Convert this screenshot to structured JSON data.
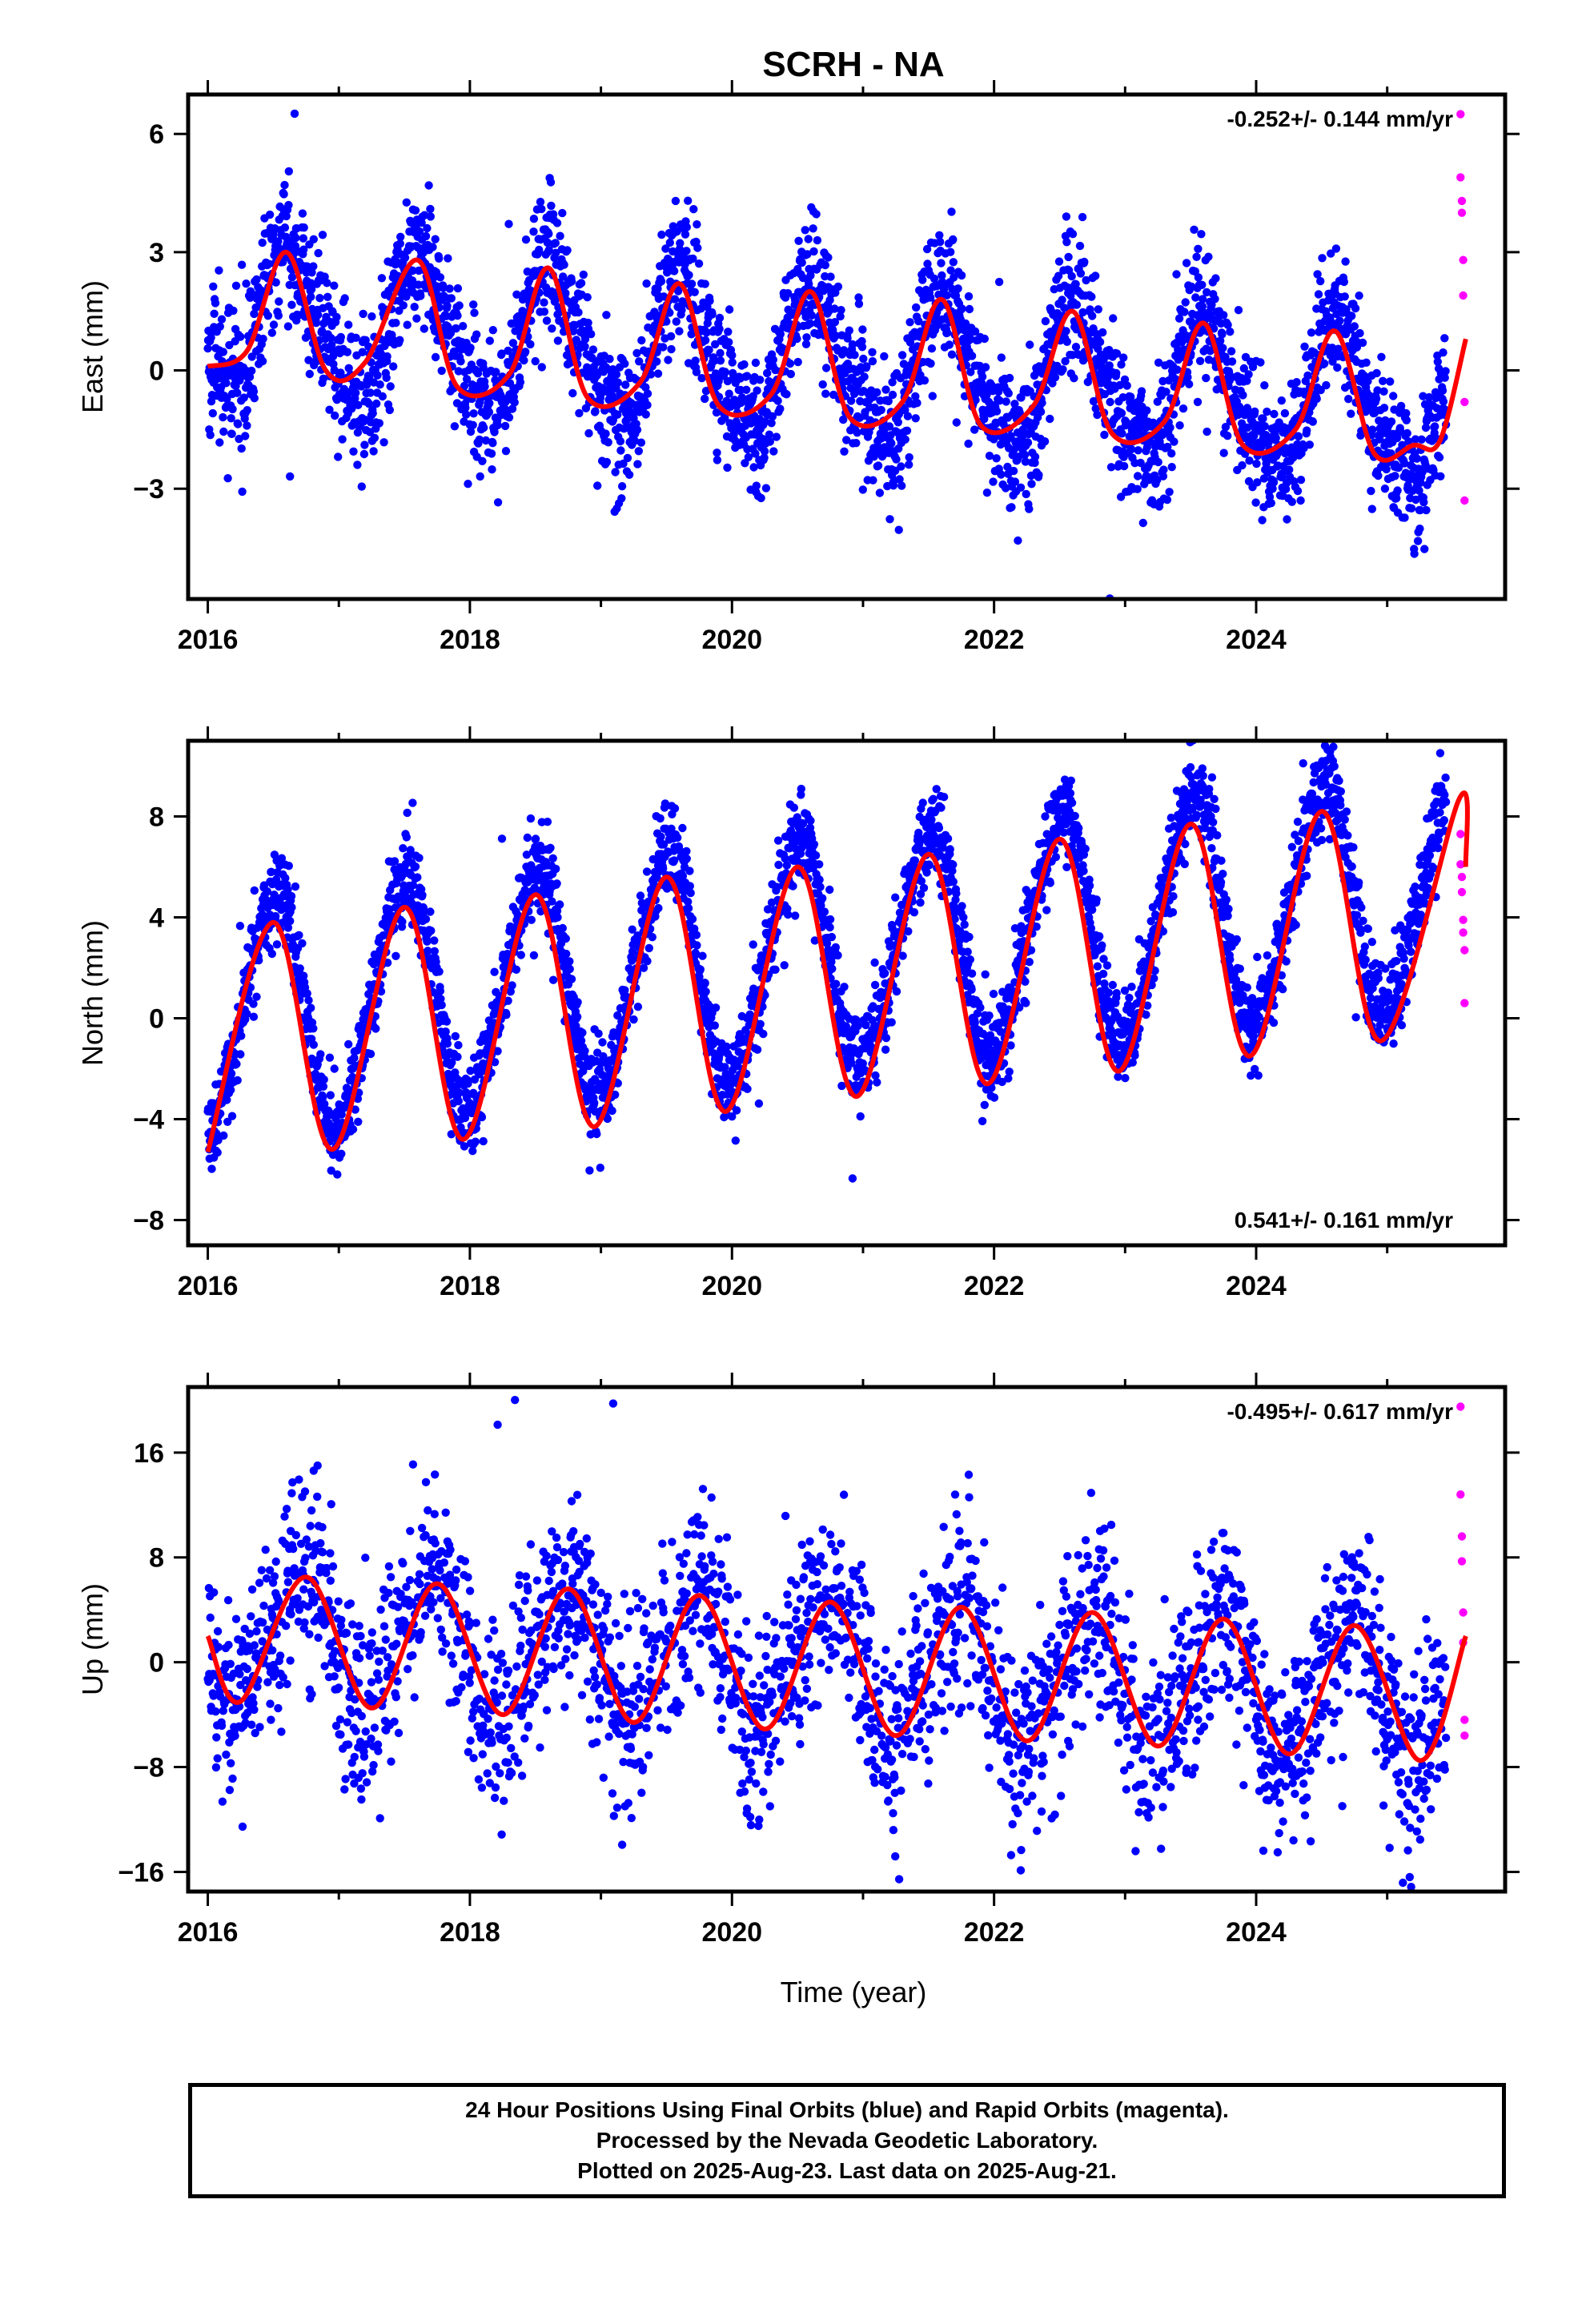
{
  "title": "SCRH - NA",
  "colors": {
    "final": "#0000ff",
    "rapid": "#ff00ff",
    "fit": "#ff0000",
    "axis": "#000000"
  },
  "x_axis": {
    "label": "Time (year)",
    "ticks": [
      2016,
      2018,
      2020,
      2022,
      2024
    ],
    "range": [
      2015.85,
      2025.9
    ]
  },
  "footer": {
    "line1": "24 Hour Positions Using Final Orbits (blue) and Rapid Orbits (magenta).",
    "line2": "Processed by the Nevada Geodetic Laboratory.",
    "line3": "Plotted on 2025-Aug-23. Last data on 2025-Aug-21."
  },
  "chart_data": [
    {
      "type": "scatter",
      "panel": "east",
      "ylabel": "East (mm)",
      "rate_text": "-0.252+/- 0.144 mm/yr",
      "rate_position": "top-right",
      "ylim": [
        -5.8,
        7.0
      ],
      "yticks": [
        -3,
        0,
        3,
        6
      ],
      "model": {
        "offset": 1.4,
        "trend": -0.252,
        "annual_amp": 1.8,
        "annual_peak": 0.62,
        "semi_amp": 0.35,
        "semi_peak": 0.05,
        "noise_sd": 0.85
      },
      "final_fit": [
        [
          2016.0,
          0.1
        ],
        [
          2016.3,
          0.5
        ],
        [
          2016.6,
          3.0
        ],
        [
          2016.9,
          0.0
        ],
        [
          2017.2,
          0.2
        ],
        [
          2017.6,
          2.8
        ],
        [
          2017.9,
          -0.4
        ],
        [
          2018.3,
          -0.1
        ],
        [
          2018.6,
          2.6
        ],
        [
          2018.9,
          -0.7
        ],
        [
          2019.3,
          -0.3
        ],
        [
          2019.6,
          2.2
        ],
        [
          2019.9,
          -0.9
        ],
        [
          2020.3,
          -0.6
        ],
        [
          2020.6,
          2.0
        ],
        [
          2020.9,
          -1.2
        ],
        [
          2021.3,
          -0.8
        ],
        [
          2021.6,
          1.8
        ],
        [
          2021.9,
          -1.4
        ],
        [
          2022.3,
          -0.9
        ],
        [
          2022.6,
          1.5
        ],
        [
          2022.9,
          -1.6
        ],
        [
          2023.3,
          -1.3
        ],
        [
          2023.6,
          1.2
        ],
        [
          2023.9,
          -1.9
        ],
        [
          2024.3,
          -1.5
        ],
        [
          2024.6,
          1.0
        ],
        [
          2024.9,
          -2.1
        ],
        [
          2025.2,
          -1.9
        ],
        [
          2025.4,
          -1.8
        ],
        [
          2025.6,
          0.8
        ]
      ],
      "rapid_points": [
        [
          2025.56,
          6.5
        ],
        [
          2025.56,
          4.9
        ],
        [
          2025.57,
          4.3
        ],
        [
          2025.57,
          4.0
        ],
        [
          2025.58,
          2.8
        ],
        [
          2025.58,
          1.9
        ],
        [
          2025.59,
          -0.8
        ],
        [
          2025.59,
          -3.3
        ]
      ]
    },
    {
      "type": "scatter",
      "panel": "north",
      "ylabel": "North (mm)",
      "rate_text": "0.541+/- 0.161 mm/yr",
      "rate_position": "bottom-right",
      "ylim": [
        -9.0,
        11.0
      ],
      "yticks": [
        -8,
        -4,
        0,
        4,
        8
      ],
      "model": {
        "offset": -0.1,
        "trend": 0.541,
        "annual_amp": 4.6,
        "annual_peak": 0.5,
        "semi_amp": 0.4,
        "semi_peak": 0.1,
        "noise_sd": 0.9
      },
      "final_fit": [
        [
          2016.0,
          -5.3
        ],
        [
          2016.5,
          3.8
        ],
        [
          2016.95,
          -5.2
        ],
        [
          2017.5,
          4.4
        ],
        [
          2017.95,
          -4.8
        ],
        [
          2018.5,
          4.9
        ],
        [
          2018.95,
          -4.3
        ],
        [
          2019.5,
          5.6
        ],
        [
          2019.95,
          -3.7
        ],
        [
          2020.5,
          6.0
        ],
        [
          2020.95,
          -3.1
        ],
        [
          2021.5,
          6.5
        ],
        [
          2021.95,
          -2.6
        ],
        [
          2022.5,
          7.1
        ],
        [
          2022.95,
          -2.1
        ],
        [
          2023.5,
          7.7
        ],
        [
          2023.95,
          -1.5
        ],
        [
          2024.5,
          8.2
        ],
        [
          2024.95,
          -0.9
        ],
        [
          2025.55,
          8.7
        ],
        [
          2025.6,
          6.0
        ]
      ],
      "rapid_points": [
        [
          2025.56,
          7.3
        ],
        [
          2025.56,
          6.1
        ],
        [
          2025.57,
          5.6
        ],
        [
          2025.57,
          5.0
        ],
        [
          2025.58,
          3.9
        ],
        [
          2025.58,
          3.4
        ],
        [
          2025.59,
          2.7
        ],
        [
          2025.59,
          0.6
        ]
      ]
    },
    {
      "type": "scatter",
      "panel": "up",
      "ylabel": "Up (mm)",
      "rate_text": "-0.495+/- 0.617 mm/yr",
      "rate_position": "top-right",
      "ylim": [
        -17.5,
        21.0
      ],
      "yticks": [
        -16,
        -8,
        0,
        8,
        16
      ],
      "model": {
        "offset": 2.2,
        "trend": -0.495,
        "annual_amp": 5.0,
        "annual_peak": 0.72,
        "semi_amp": 1.0,
        "semi_peak": 0.35,
        "noise_sd": 3.6
      },
      "final_fit": [
        [
          2016.0,
          2.0
        ],
        [
          2016.25,
          -3.0
        ],
        [
          2016.75,
          6.5
        ],
        [
          2017.25,
          -3.5
        ],
        [
          2017.75,
          6.0
        ],
        [
          2018.25,
          -4.0
        ],
        [
          2018.75,
          5.6
        ],
        [
          2019.25,
          -4.6
        ],
        [
          2019.75,
          5.1
        ],
        [
          2020.25,
          -5.1
        ],
        [
          2020.75,
          4.6
        ],
        [
          2021.25,
          -5.6
        ],
        [
          2021.75,
          4.2
        ],
        [
          2022.25,
          -6.0
        ],
        [
          2022.75,
          3.8
        ],
        [
          2023.25,
          -6.4
        ],
        [
          2023.75,
          3.3
        ],
        [
          2024.25,
          -7.0
        ],
        [
          2024.75,
          2.8
        ],
        [
          2025.25,
          -7.5
        ],
        [
          2025.6,
          2.0
        ]
      ],
      "rapid_points": [
        [
          2025.56,
          19.5
        ],
        [
          2025.56,
          12.8
        ],
        [
          2025.57,
          9.6
        ],
        [
          2025.57,
          7.7
        ],
        [
          2025.58,
          3.8
        ],
        [
          2025.58,
          1.5
        ],
        [
          2025.59,
          -4.4
        ],
        [
          2025.59,
          -5.6
        ]
      ]
    }
  ]
}
